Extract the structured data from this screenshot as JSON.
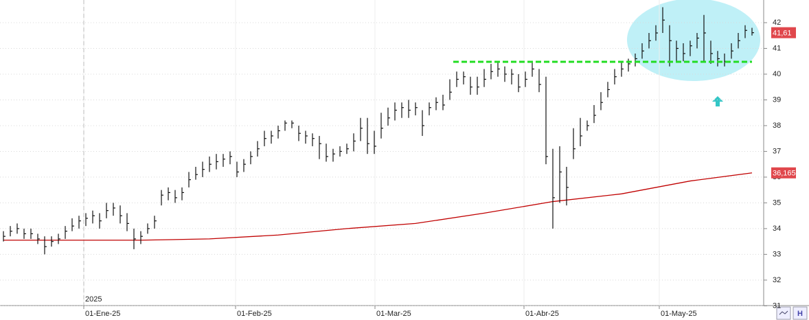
{
  "chart_data": {
    "type": "ohlc",
    "x": [
      0,
      1,
      2,
      3,
      4,
      5,
      6,
      7,
      8,
      9,
      10,
      11,
      12,
      13,
      14,
      15,
      16,
      17,
      18,
      19,
      20,
      21,
      22,
      23,
      24,
      25,
      26,
      27,
      28,
      29,
      30,
      31,
      32,
      33,
      34,
      35,
      36,
      37,
      38,
      39,
      40,
      41,
      42,
      43,
      44,
      45,
      46,
      47,
      48,
      49,
      50,
      51,
      52,
      53,
      54,
      55,
      56,
      57,
      58,
      59,
      60,
      61,
      62,
      63,
      64,
      65,
      66,
      67,
      68,
      69,
      70,
      71,
      72,
      73,
      74,
      75,
      76,
      77,
      78,
      79,
      80,
      81,
      82,
      83,
      84,
      85,
      86,
      87,
      88,
      89,
      90,
      91,
      92,
      93,
      94,
      95,
      96,
      97,
      98,
      99,
      100,
      101,
      102,
      103,
      104,
      105,
      106,
      107,
      108,
      109
    ],
    "high": [
      33.9,
      34.1,
      34.2,
      34.0,
      34.0,
      33.8,
      33.7,
      33.7,
      33.8,
      34.1,
      34.4,
      34.5,
      34.6,
      34.7,
      34.6,
      35.0,
      35.0,
      34.9,
      34.6,
      34.0,
      33.9,
      34.2,
      34.5,
      35.5,
      35.6,
      35.5,
      35.6,
      36.2,
      36.4,
      36.6,
      36.8,
      36.9,
      36.9,
      37.0,
      36.6,
      36.7,
      37.0,
      37.4,
      37.8,
      37.8,
      38.0,
      38.2,
      38.2,
      38.0,
      37.8,
      37.7,
      37.6,
      37.3,
      37.1,
      37.2,
      37.3,
      37.7,
      38.3,
      38.3,
      37.8,
      38.5,
      38.7,
      38.9,
      38.9,
      39.0,
      38.9,
      38.6,
      38.9,
      39.1,
      39.2,
      39.8,
      40.1,
      40.1,
      39.9,
      39.9,
      40.2,
      40.4,
      40.5,
      40.3,
      40.2,
      40.0,
      40.1,
      40.5,
      40.2,
      39.9,
      37.1,
      37.2,
      36.4,
      37.9,
      38.3,
      38.2,
      38.8,
      39.3,
      39.7,
      40.2,
      40.5,
      40.6,
      40.8,
      41.2,
      41.6,
      41.9,
      42.6,
      41.9,
      41.3,
      41.2,
      41.3,
      41.6,
      42.3,
      41.3,
      40.9,
      40.8,
      41.2,
      41.6,
      41.9,
      41.8
    ],
    "low": [
      33.5,
      33.7,
      33.8,
      33.6,
      33.6,
      33.4,
      33.0,
      33.3,
      33.4,
      33.6,
      33.9,
      34.0,
      34.1,
      34.2,
      34.0,
      34.4,
      34.5,
      34.2,
      33.9,
      33.2,
      33.4,
      33.8,
      34.0,
      34.9,
      35.1,
      35.0,
      35.1,
      35.6,
      35.9,
      36.0,
      36.2,
      36.3,
      36.4,
      36.5,
      36.0,
      36.2,
      36.5,
      36.8,
      37.2,
      37.3,
      37.5,
      37.8,
      37.9,
      37.4,
      37.3,
      37.2,
      36.7,
      36.6,
      36.6,
      36.8,
      36.9,
      37.0,
      37.4,
      36.9,
      36.9,
      37.5,
      38.0,
      38.2,
      38.3,
      38.3,
      38.4,
      37.6,
      38.4,
      38.6,
      38.6,
      39.0,
      39.5,
      39.6,
      39.2,
      39.2,
      39.5,
      39.8,
      39.9,
      39.7,
      39.6,
      39.3,
      39.5,
      39.9,
      39.3,
      36.5,
      34.0,
      35.0,
      34.9,
      36.7,
      37.2,
      37.8,
      38.1,
      38.6,
      39.1,
      39.6,
      39.9,
      40.1,
      40.3,
      40.6,
      41.0,
      41.3,
      41.6,
      40.3,
      40.5,
      40.5,
      40.7,
      41.0,
      40.5,
      40.4,
      40.3,
      40.3,
      40.6,
      41.0,
      41.4,
      41.5
    ],
    "close": [
      33.7,
      33.9,
      34.0,
      33.8,
      33.8,
      33.6,
      33.3,
      33.5,
      33.6,
      33.9,
      34.1,
      34.3,
      34.4,
      34.5,
      34.3,
      34.7,
      34.8,
      34.5,
      34.2,
      33.6,
      33.7,
      34.0,
      34.3,
      35.3,
      35.4,
      35.2,
      35.4,
      35.9,
      36.1,
      36.3,
      36.5,
      36.6,
      36.7,
      36.8,
      36.2,
      36.5,
      36.8,
      37.1,
      37.5,
      37.6,
      37.8,
      38.1,
      38.1,
      37.7,
      37.6,
      37.5,
      37.3,
      36.8,
      36.9,
      37.0,
      37.1,
      37.4,
      37.9,
      37.3,
      37.2,
      37.9,
      38.3,
      38.6,
      38.7,
      38.6,
      38.7,
      38.0,
      38.7,
      38.9,
      38.8,
      39.3,
      39.8,
      39.9,
      39.5,
      39.5,
      39.8,
      40.1,
      40.2,
      40.0,
      40.0,
      39.5,
      39.8,
      40.2,
      39.6,
      36.8,
      35.2,
      36.2,
      35.6,
      37.1,
      37.6,
      38.0,
      38.4,
      38.9,
      39.4,
      39.9,
      40.2,
      40.4,
      40.6,
      40.9,
      41.3,
      41.6,
      42.1,
      41.3,
      41.0,
      40.8,
      41.1,
      41.4,
      41.6,
      40.8,
      40.6,
      40.5,
      40.9,
      41.3,
      41.7,
      41.61
    ],
    "color": "#111111",
    "moving_average": {
      "x": [
        0,
        10,
        20,
        30,
        40,
        50,
        60,
        70,
        80,
        90,
        100,
        109
      ],
      "values": [
        33.55,
        33.55,
        33.55,
        33.6,
        33.75,
        34.0,
        34.2,
        34.6,
        35.05,
        35.35,
        35.85,
        36.165
      ],
      "color": "#c00000"
    },
    "level": {
      "value": 40.48,
      "x": [
        65.5,
        109
      ],
      "color": "#22dd22"
    },
    "price_labels": [
      {
        "value": 41.61,
        "label": "41,61",
        "color": "#e0474c"
      },
      {
        "value": 36.165,
        "label": "36,165",
        "color": "#e0474c"
      }
    ],
    "year_label": {
      "value": 11.7,
      "label": "2025"
    },
    "xlim": [
      -0.5,
      110.7
    ],
    "xticks": [
      {
        "value": 11.7,
        "label": "01-Ene-25"
      },
      {
        "value": 33.8,
        "label": "01-Feb-25"
      },
      {
        "value": 54.1,
        "label": "01-Mar-25"
      },
      {
        "value": 75.8,
        "label": "01-Abr-25"
      },
      {
        "value": 95.5,
        "label": "01-May-25"
      }
    ],
    "ylim": [
      31.01,
      42.88
    ],
    "yticks": [
      31,
      32,
      33,
      34,
      35,
      36,
      37,
      38,
      39,
      40,
      41,
      42
    ],
    "grid": true
  }
}
